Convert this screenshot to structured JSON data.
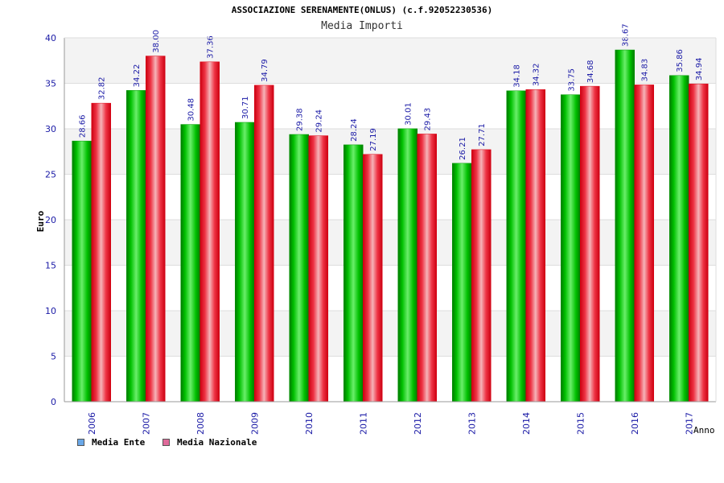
{
  "chart_data": {
    "type": "bar",
    "title": "ASSOCIAZIONE SERENAMENTE(ONLUS) (c.f.92052230536)",
    "subtitle": "Media Importi",
    "ylabel": "Euro",
    "xlabel": "Anno",
    "ylim": [
      0,
      40
    ],
    "yticks": [
      "0",
      "5",
      "10",
      "15",
      "20",
      "25",
      "30",
      "35",
      "40"
    ],
    "grid": true,
    "legend_position": "bottom-left",
    "categories": [
      "2006",
      "2007",
      "2008",
      "2009",
      "2010",
      "2011",
      "2012",
      "2013",
      "2014",
      "2015",
      "2016",
      "2017"
    ],
    "series": [
      {
        "name": "Media Ente",
        "color": "#00b000",
        "legend_color": "#6aa8e8",
        "values": [
          28.66,
          34.22,
          30.48,
          30.71,
          29.38,
          28.24,
          30.01,
          26.21,
          34.18,
          33.75,
          38.67,
          35.86
        ],
        "labels": [
          "28.66",
          "34.22",
          "30.48",
          "30.71",
          "29.38",
          "28.24",
          "30.01",
          "26.21",
          "34.18",
          "33.75",
          "38.67",
          "35.86"
        ]
      },
      {
        "name": "Media Nazionale",
        "color": "#ee1122",
        "legend_color": "#e06a9a",
        "values": [
          32.82,
          38.0,
          37.36,
          34.79,
          29.24,
          27.19,
          29.43,
          27.71,
          34.32,
          34.68,
          34.83,
          34.94
        ],
        "labels": [
          "32.82",
          "38.00",
          "37.36",
          "34.79",
          "29.24",
          "27.19",
          "29.43",
          "27.71",
          "34.32",
          "34.68",
          "34.83",
          "34.94"
        ]
      }
    ]
  }
}
